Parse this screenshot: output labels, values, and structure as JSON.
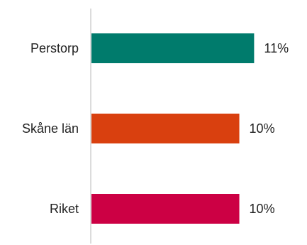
{
  "chart_data": {
    "type": "bar",
    "orientation": "horizontal",
    "categories": [
      "Perstorp",
      "Skåne län",
      "Riket"
    ],
    "values": [
      11,
      10,
      10
    ],
    "value_labels": [
      "11%",
      "10%",
      "10%"
    ],
    "colors": [
      "#007b6c",
      "#d9400f",
      "#cc0044"
    ],
    "xlim": [
      0,
      11.7
    ],
    "grid": false,
    "legend": "none"
  }
}
